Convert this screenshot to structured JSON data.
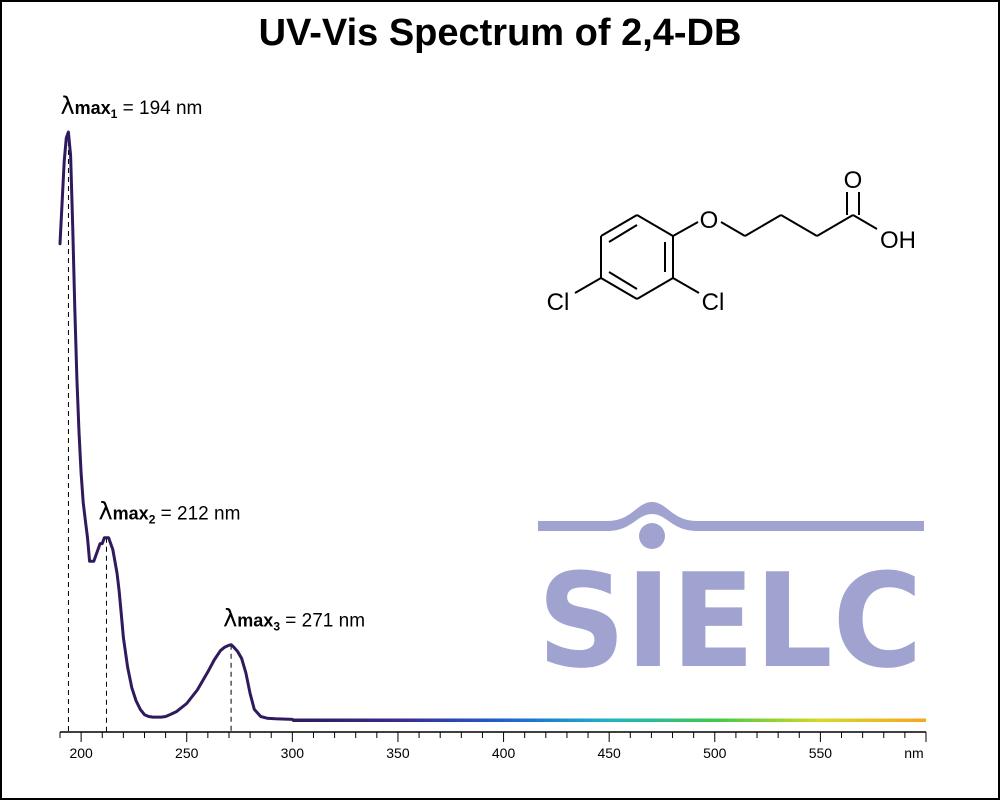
{
  "page": {
    "title": "UV-Vis Spectrum of 2,4-DB"
  },
  "chart_data": {
    "type": "line",
    "title": "UV-Vis Spectrum of 2,4-DB",
    "xlabel": "",
    "ylabel": "",
    "x_unit_label": "nm",
    "xlim": [
      190,
      600
    ],
    "ylim": [
      0,
      1
    ],
    "grid": false,
    "y_axis_shown": false,
    "line_color": "#2e1a5c",
    "baseline_gradient": [
      "#2e1a5c",
      "#3a2a8c",
      "#1f5fcf",
      "#1fb3c8",
      "#3fc94a",
      "#d7d928",
      "#f5a623"
    ],
    "x_ticks": [
      200,
      250,
      300,
      350,
      400,
      450,
      500,
      550
    ],
    "x_tick_labels": [
      "200",
      "250",
      "300",
      "350",
      "400",
      "450",
      "500",
      "550"
    ],
    "series": [
      {
        "x": [
          190,
          191,
          192,
          193,
          194,
          195,
          196,
          197,
          198,
          199,
          200,
          201,
          202,
          203,
          204,
          205,
          206,
          207,
          208,
          209,
          210,
          211,
          212,
          213,
          214,
          215,
          216,
          217,
          218,
          219,
          220,
          222,
          224,
          226,
          228,
          230,
          232,
          234,
          236,
          238,
          240,
          242,
          245,
          250,
          255,
          260,
          263,
          266,
          268,
          270,
          271,
          272,
          274,
          276,
          278,
          280,
          282,
          285,
          288,
          292,
          300,
          350,
          400,
          450,
          500,
          550,
          600
        ],
        "y": [
          0.81,
          0.88,
          0.95,
          0.99,
          1.0,
          0.96,
          0.84,
          0.7,
          0.58,
          0.49,
          0.42,
          0.37,
          0.34,
          0.31,
          0.27,
          0.27,
          0.27,
          0.28,
          0.29,
          0.3,
          0.3,
          0.31,
          0.31,
          0.31,
          0.3,
          0.29,
          0.27,
          0.25,
          0.22,
          0.18,
          0.14,
          0.09,
          0.055,
          0.033,
          0.018,
          0.009,
          0.006,
          0.005,
          0.005,
          0.005,
          0.006,
          0.009,
          0.014,
          0.028,
          0.051,
          0.082,
          0.102,
          0.118,
          0.124,
          0.127,
          0.128,
          0.125,
          0.117,
          0.105,
          0.08,
          0.045,
          0.018,
          0.006,
          0.003,
          0.002,
          0.001,
          0.0,
          0.0,
          0.0,
          0.0,
          0.0,
          0.0
        ]
      }
    ],
    "annotations": [
      {
        "symbol": "λ",
        "sub": "max",
        "index": "1",
        "text": " = 194 nm",
        "x": 194
      },
      {
        "symbol": "λ",
        "sub": "max",
        "index": "2",
        "text": " = 212 nm",
        "x": 212
      },
      {
        "symbol": "λ",
        "sub": "max",
        "index": "3",
        "text": " = 271 nm",
        "x": 271
      }
    ]
  },
  "structure": {
    "atoms": {
      "o_ether": "O",
      "o_carbonyl": "O",
      "oh": "OH",
      "cl_ring_left": "Cl",
      "cl_ring_right": "Cl"
    }
  },
  "watermark": {
    "text": "SIELC",
    "color": "#a0a2cf"
  }
}
